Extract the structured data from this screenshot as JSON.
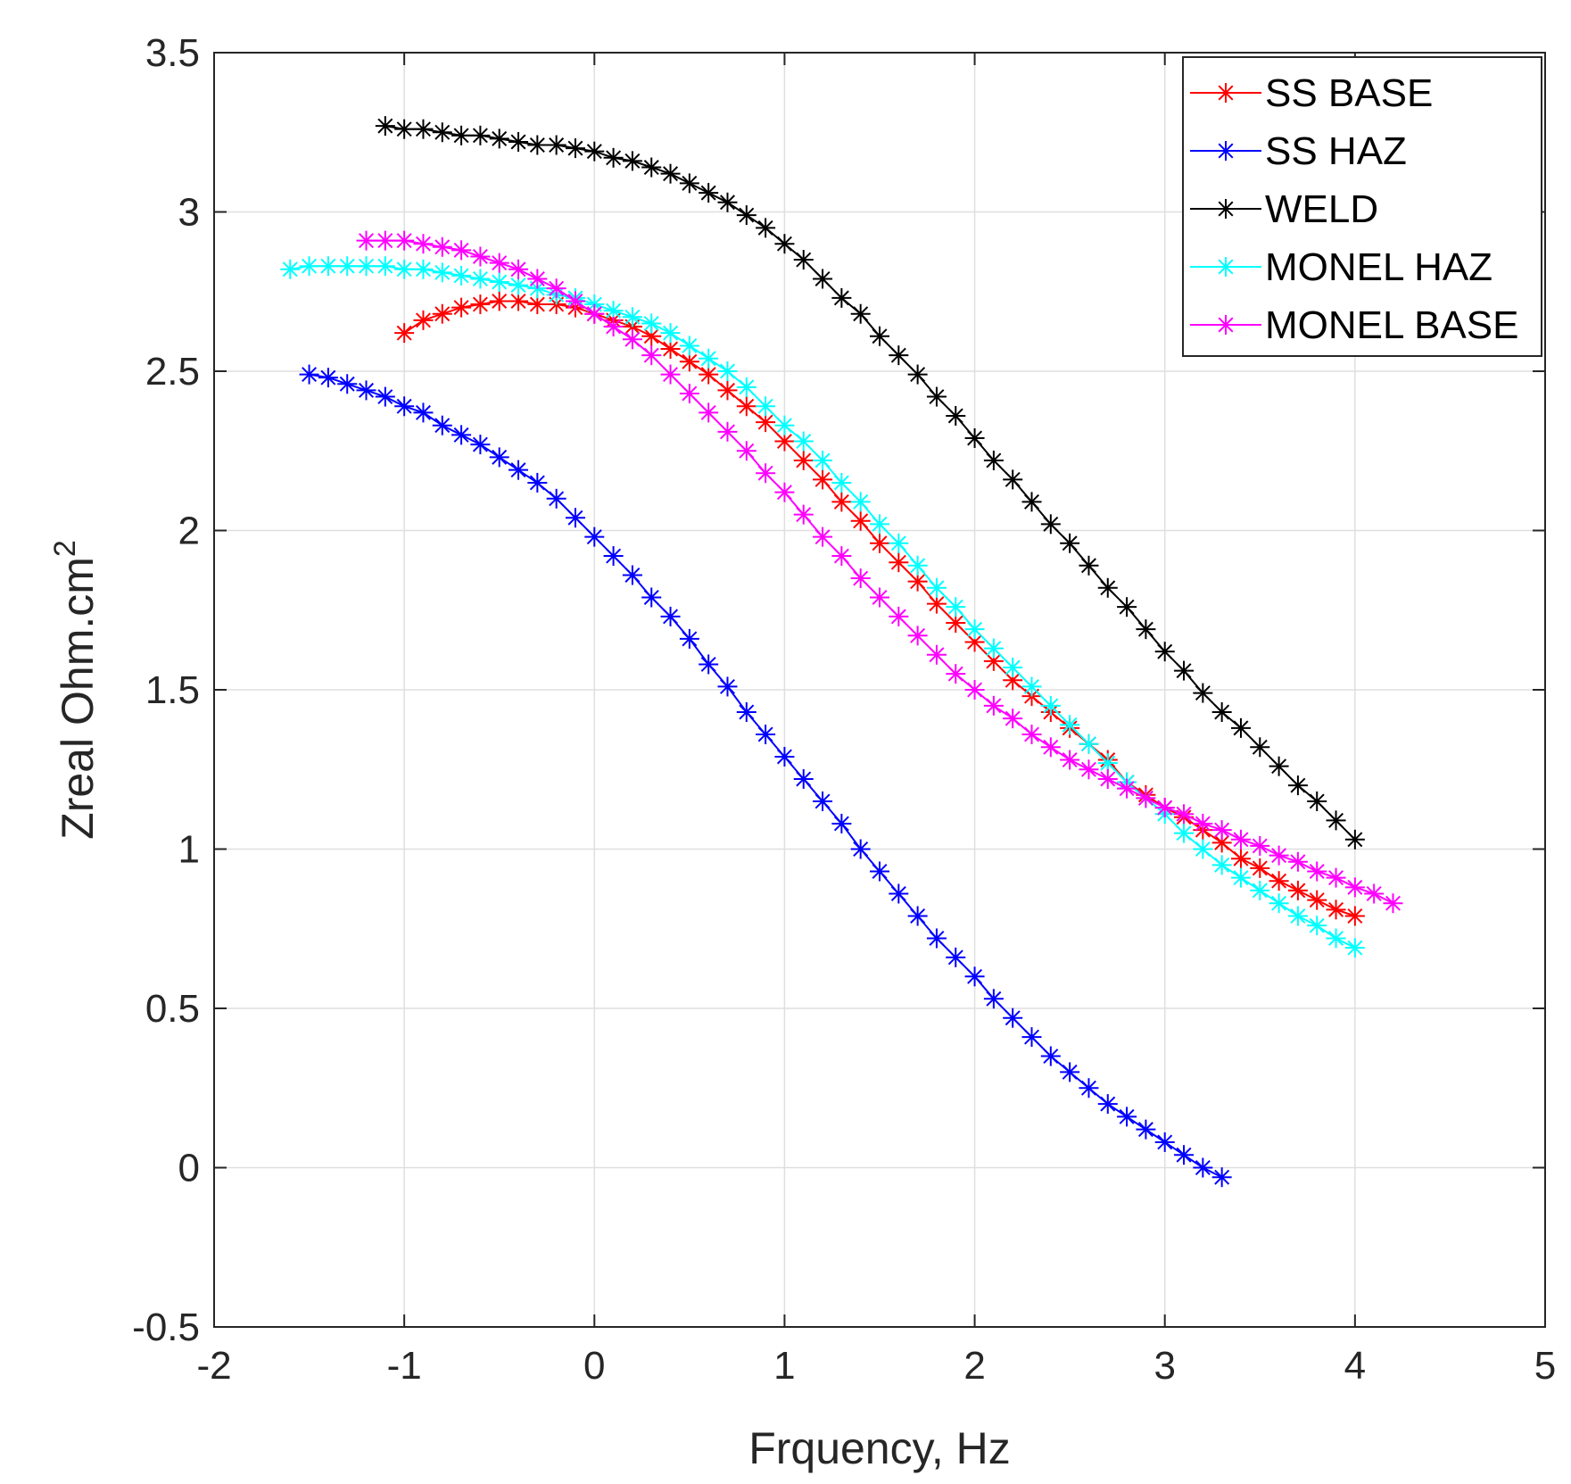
{
  "chart_data": {
    "type": "line",
    "marker": "asterisk",
    "title": "",
    "xlabel": "Frquency, Hz",
    "ylabel_main": "Zreal Ohm.cm",
    "ylabel_superscript": "2",
    "xlim": [
      -2,
      5
    ],
    "ylim": [
      -0.5,
      3.5
    ],
    "xticks": [
      "-2",
      "-1",
      "0",
      "1",
      "2",
      "3",
      "4",
      "5"
    ],
    "xtick_values": [
      -2,
      -1,
      0,
      1,
      2,
      3,
      4,
      5
    ],
    "yticks": [
      "-0.5",
      "0",
      "0.5",
      "1",
      "1.5",
      "2",
      "2.5",
      "3",
      "3.5"
    ],
    "ytick_values": [
      -0.5,
      0,
      0.5,
      1,
      1.5,
      2,
      2.5,
      3,
      3.5
    ],
    "grid": true,
    "legend_position": "top-right",
    "series": [
      {
        "name": "SS BASE",
        "color": "#ff0000",
        "x": [
          -1.0,
          -0.9,
          -0.8,
          -0.7,
          -0.6,
          -0.5,
          -0.4,
          -0.3,
          -0.2,
          -0.1,
          0.0,
          0.1,
          0.2,
          0.3,
          0.4,
          0.5,
          0.6,
          0.7,
          0.8,
          0.9,
          1.0,
          1.1,
          1.2,
          1.3,
          1.4,
          1.5,
          1.6,
          1.7,
          1.8,
          1.9,
          2.0,
          2.1,
          2.2,
          2.3,
          2.4,
          2.5,
          2.6,
          2.7,
          2.8,
          2.9,
          3.0,
          3.1,
          3.2,
          3.3,
          3.4,
          3.5,
          3.6,
          3.7,
          3.8,
          3.9,
          4.0
        ],
        "y": [
          2.62,
          2.66,
          2.68,
          2.7,
          2.71,
          2.72,
          2.72,
          2.71,
          2.71,
          2.7,
          2.68,
          2.66,
          2.64,
          2.61,
          2.57,
          2.53,
          2.49,
          2.44,
          2.39,
          2.34,
          2.28,
          2.22,
          2.16,
          2.09,
          2.03,
          1.96,
          1.9,
          1.84,
          1.77,
          1.71,
          1.65,
          1.59,
          1.53,
          1.48,
          1.43,
          1.38,
          1.33,
          1.28,
          1.21,
          1.17,
          1.13,
          1.1,
          1.06,
          1.02,
          0.97,
          0.94,
          0.9,
          0.87,
          0.84,
          0.81,
          0.79
        ]
      },
      {
        "name": "SS HAZ",
        "color": "#0000ff",
        "x": [
          -1.5,
          -1.4,
          -1.3,
          -1.2,
          -1.1,
          -1.0,
          -0.9,
          -0.8,
          -0.7,
          -0.6,
          -0.5,
          -0.4,
          -0.3,
          -0.2,
          -0.1,
          0.0,
          0.1,
          0.2,
          0.3,
          0.4,
          0.5,
          0.6,
          0.7,
          0.8,
          0.9,
          1.0,
          1.1,
          1.2,
          1.3,
          1.4,
          1.5,
          1.6,
          1.7,
          1.8,
          1.9,
          2.0,
          2.1,
          2.2,
          2.3,
          2.4,
          2.5,
          2.6,
          2.7,
          2.8,
          2.9,
          3.0,
          3.1,
          3.2,
          3.3
        ],
        "y": [
          2.49,
          2.48,
          2.46,
          2.44,
          2.42,
          2.39,
          2.37,
          2.33,
          2.3,
          2.27,
          2.23,
          2.19,
          2.15,
          2.1,
          2.04,
          1.98,
          1.92,
          1.86,
          1.79,
          1.73,
          1.66,
          1.58,
          1.51,
          1.43,
          1.36,
          1.29,
          1.22,
          1.15,
          1.08,
          1.0,
          0.93,
          0.86,
          0.79,
          0.72,
          0.66,
          0.6,
          0.53,
          0.47,
          0.41,
          0.35,
          0.3,
          0.25,
          0.2,
          0.16,
          0.12,
          0.08,
          0.04,
          0.0,
          -0.03
        ]
      },
      {
        "name": "WELD",
        "color": "#000000",
        "x": [
          -1.1,
          -1.0,
          -0.9,
          -0.8,
          -0.7,
          -0.6,
          -0.5,
          -0.4,
          -0.3,
          -0.2,
          -0.1,
          0.0,
          0.1,
          0.2,
          0.3,
          0.4,
          0.5,
          0.6,
          0.7,
          0.8,
          0.9,
          1.0,
          1.1,
          1.2,
          1.3,
          1.4,
          1.5,
          1.6,
          1.7,
          1.8,
          1.9,
          2.0,
          2.1,
          2.2,
          2.3,
          2.4,
          2.5,
          2.6,
          2.7,
          2.8,
          2.9,
          3.0,
          3.1,
          3.2,
          3.3,
          3.4,
          3.5,
          3.6,
          3.7,
          3.8,
          3.9,
          4.0
        ],
        "y": [
          3.27,
          3.26,
          3.26,
          3.25,
          3.24,
          3.24,
          3.23,
          3.22,
          3.21,
          3.21,
          3.2,
          3.19,
          3.17,
          3.16,
          3.14,
          3.12,
          3.09,
          3.06,
          3.03,
          2.99,
          2.95,
          2.9,
          2.85,
          2.79,
          2.73,
          2.68,
          2.61,
          2.55,
          2.49,
          2.42,
          2.36,
          2.29,
          2.22,
          2.16,
          2.09,
          2.02,
          1.96,
          1.89,
          1.82,
          1.76,
          1.69,
          1.62,
          1.56,
          1.49,
          1.43,
          1.38,
          1.32,
          1.26,
          1.2,
          1.15,
          1.09,
          1.03
        ]
      },
      {
        "name": "MONEL HAZ",
        "color": "#00ffff",
        "x": [
          -1.6,
          -1.5,
          -1.4,
          -1.3,
          -1.2,
          -1.1,
          -1.0,
          -0.9,
          -0.8,
          -0.7,
          -0.6,
          -0.5,
          -0.4,
          -0.3,
          -0.2,
          -0.1,
          0.0,
          0.1,
          0.2,
          0.3,
          0.4,
          0.5,
          0.6,
          0.7,
          0.8,
          0.9,
          1.0,
          1.1,
          1.2,
          1.3,
          1.4,
          1.5,
          1.6,
          1.7,
          1.8,
          1.9,
          2.0,
          2.1,
          2.2,
          2.3,
          2.4,
          2.5,
          2.6,
          2.7,
          2.8,
          2.9,
          3.0,
          3.1,
          3.2,
          3.3,
          3.4,
          3.5,
          3.6,
          3.7,
          3.8,
          3.9,
          4.0
        ],
        "y": [
          2.82,
          2.83,
          2.83,
          2.83,
          2.83,
          2.83,
          2.82,
          2.82,
          2.81,
          2.8,
          2.79,
          2.78,
          2.77,
          2.76,
          2.74,
          2.73,
          2.71,
          2.69,
          2.67,
          2.65,
          2.62,
          2.58,
          2.54,
          2.5,
          2.45,
          2.39,
          2.33,
          2.28,
          2.22,
          2.15,
          2.09,
          2.02,
          1.96,
          1.89,
          1.82,
          1.76,
          1.69,
          1.63,
          1.57,
          1.51,
          1.45,
          1.39,
          1.33,
          1.27,
          1.21,
          1.16,
          1.11,
          1.05,
          1.0,
          0.95,
          0.91,
          0.87,
          0.83,
          0.79,
          0.76,
          0.72,
          0.69
        ]
      },
      {
        "name": "MONEL BASE",
        "color": "#ff00ff",
        "x": [
          -1.2,
          -1.1,
          -1.0,
          -0.9,
          -0.8,
          -0.7,
          -0.6,
          -0.5,
          -0.4,
          -0.3,
          -0.2,
          -0.1,
          0.0,
          0.1,
          0.2,
          0.3,
          0.4,
          0.5,
          0.6,
          0.7,
          0.8,
          0.9,
          1.0,
          1.1,
          1.2,
          1.3,
          1.4,
          1.5,
          1.6,
          1.7,
          1.8,
          1.9,
          2.0,
          2.1,
          2.2,
          2.3,
          2.4,
          2.5,
          2.6,
          2.7,
          2.8,
          2.9,
          3.0,
          3.1,
          3.2,
          3.3,
          3.4,
          3.5,
          3.6,
          3.7,
          3.8,
          3.9,
          4.0,
          4.1,
          4.2
        ],
        "y": [
          2.91,
          2.91,
          2.91,
          2.9,
          2.89,
          2.88,
          2.86,
          2.84,
          2.82,
          2.79,
          2.76,
          2.72,
          2.68,
          2.64,
          2.6,
          2.55,
          2.49,
          2.43,
          2.37,
          2.31,
          2.25,
          2.18,
          2.12,
          2.05,
          1.98,
          1.92,
          1.85,
          1.79,
          1.73,
          1.67,
          1.61,
          1.55,
          1.5,
          1.45,
          1.41,
          1.36,
          1.32,
          1.28,
          1.25,
          1.22,
          1.19,
          1.16,
          1.13,
          1.11,
          1.08,
          1.06,
          1.03,
          1.01,
          0.98,
          0.96,
          0.93,
          0.91,
          0.88,
          0.86,
          0.83
        ]
      }
    ]
  }
}
